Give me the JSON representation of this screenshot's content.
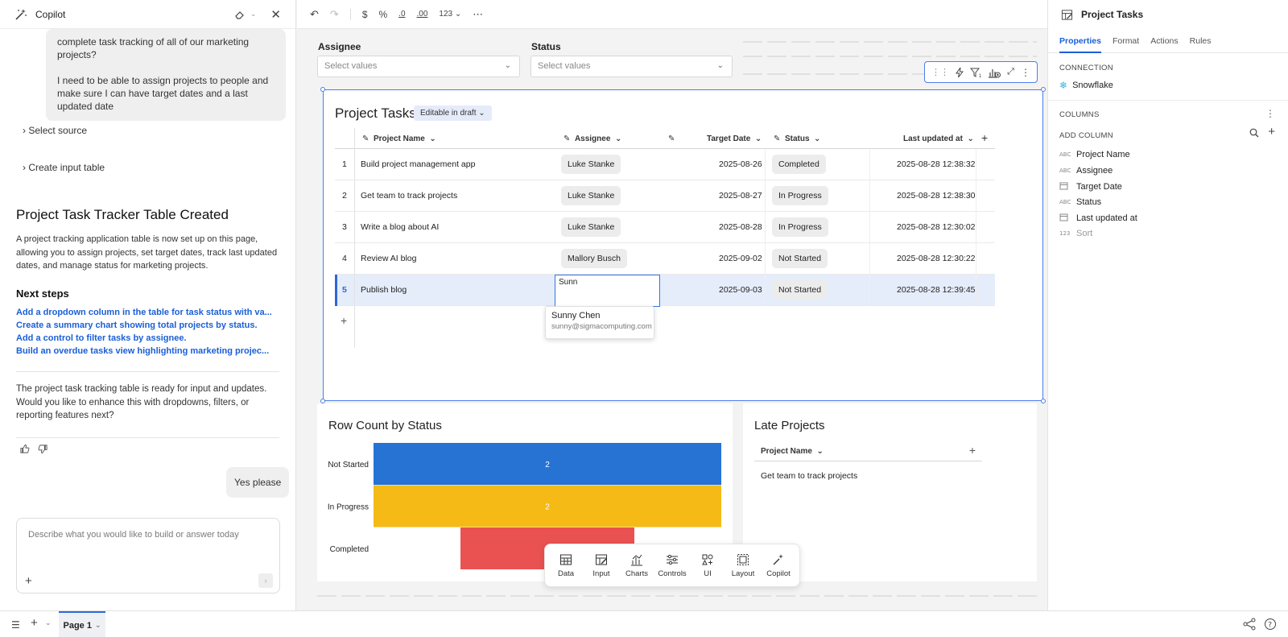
{
  "copilot": {
    "title": "Copilot",
    "user_message_1": "complete task tracking of all of our marketing projects?",
    "user_message_2": "I need to be able to assign projects to people and make sure I can have target dates and a last updated date",
    "step_select_source": "Select source",
    "step_create_table": "Create input table",
    "result_title": "Project Task Tracker Table Created",
    "result_body": "A project tracking application table is now set up on this page, allowing you to assign projects, set target dates, track last updated dates, and manage status for marketing projects.",
    "next_steps_heading": "Next steps",
    "next_steps": [
      "Add a dropdown column in the table for task status with va...",
      "Create a summary chart showing total projects by status.",
      "Add a control to filter tasks by assignee.",
      "Build an overdue tasks view highlighting marketing projec..."
    ],
    "followup": "The project task tracking table is ready for input and updates. Would you like to enhance this with dropdowns, filters, or reporting features next?",
    "user_reply": "Yes please",
    "input_placeholder": "Describe what you would like to build or answer today"
  },
  "toolbar": {
    "number_format": "123"
  },
  "controls": {
    "assignee_label": "Assignee",
    "assignee_placeholder": "Select values",
    "status_label": "Status",
    "status_placeholder": "Select values"
  },
  "table": {
    "owner_tag": "Luke Stanke",
    "title": "Project Tasks",
    "badge": "Editable in draft",
    "columns": [
      "Project Name",
      "Assignee",
      "Target Date",
      "Status",
      "Last updated at"
    ],
    "rows": [
      {
        "n": "1",
        "name": "Build project management app",
        "assignee": "Luke Stanke",
        "date": "2025-08-26",
        "status": "Completed",
        "updated": "2025-08-28 12:38:32"
      },
      {
        "n": "2",
        "name": "Get team to track projects",
        "assignee": "Luke Stanke",
        "date": "2025-08-27",
        "status": "In Progress",
        "updated": "2025-08-28 12:38:30"
      },
      {
        "n": "3",
        "name": "Write a blog about AI",
        "assignee": "Luke Stanke",
        "date": "2025-08-28",
        "status": "In Progress",
        "updated": "2025-08-28 12:30:02"
      },
      {
        "n": "4",
        "name": "Review AI blog",
        "assignee": "Mallory Busch",
        "date": "2025-09-02",
        "status": "Not Started",
        "updated": "2025-08-28 12:30:22"
      },
      {
        "n": "5",
        "name": "Publish blog",
        "assignee": "",
        "date": "2025-09-03",
        "status": "Not Started",
        "updated": "2025-08-28 12:39:45"
      }
    ],
    "edit_value": "Sunn",
    "suggestion_name": "Sunny Chen",
    "suggestion_email": "sunny@sigmacomputing.com"
  },
  "chart": {
    "title": "Row Count by Status"
  },
  "chart_data": {
    "type": "bar",
    "orientation": "horizontal",
    "categories": [
      "Not Started",
      "In Progress",
      "Completed"
    ],
    "values": [
      2,
      2,
      1
    ],
    "colors": [
      "#2673d4",
      "#f5ba16",
      "#ea5252"
    ],
    "xlim": [
      0,
      2
    ]
  },
  "late": {
    "title": "Late Projects",
    "column": "Project Name",
    "rows": [
      "Get team to track projects"
    ]
  },
  "addbar": {
    "items": [
      "Data",
      "Input",
      "Charts",
      "Controls",
      "UI",
      "Layout",
      "Copilot"
    ]
  },
  "properties": {
    "title": "Project Tasks",
    "tabs": [
      "Properties",
      "Format",
      "Actions",
      "Rules"
    ],
    "connection_label": "CONNECTION",
    "connection_value": "Snowflake",
    "columns_label": "COLUMNS",
    "add_column": "ADD COLUMN",
    "columns": [
      {
        "type": "ABC",
        "name": "Project Name"
      },
      {
        "type": "ABC",
        "name": "Assignee"
      },
      {
        "type": "cal",
        "name": "Target Date"
      },
      {
        "type": "ABC",
        "name": "Status"
      },
      {
        "type": "cal",
        "name": "Last updated at"
      },
      {
        "type": "123",
        "name": "Sort"
      }
    ]
  },
  "bottom": {
    "page_tab": "Page 1"
  }
}
